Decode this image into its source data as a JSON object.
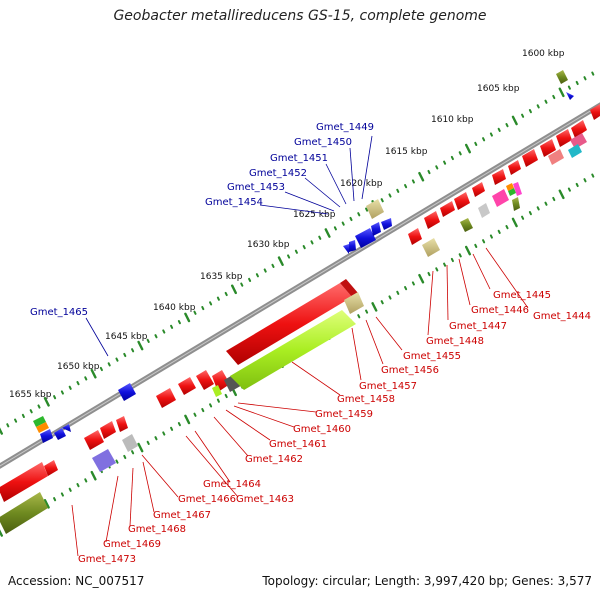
{
  "title": "Geobacter metallireducens GS-15, complete genome",
  "footer": {
    "accession": "Accession: NC_007517",
    "topology": "Topology: circular; Length: 3,997,420 bp; Genes: 3,577"
  },
  "colors": {
    "backbone": "#8a8a8a",
    "forward_gene": "#ee1111",
    "reverse_gene": "#1111dd",
    "tick": "#2a8a2a",
    "label_forward": "#000099",
    "label_reverse": "#cc0000"
  },
  "kbp_labels": [
    "1600 kbp",
    "1605 kbp",
    "1610 kbp",
    "1615 kbp",
    "1620 kbp",
    "1625 kbp",
    "1630 kbp",
    "1635 kbp",
    "1640 kbp",
    "1645 kbp",
    "1650 kbp",
    "1655 kbp"
  ],
  "outer_labels": [
    "Gmet_1449",
    "Gmet_1450",
    "Gmet_1451",
    "Gmet_1452",
    "Gmet_1453",
    "Gmet_1454",
    "Gmet_1465"
  ],
  "inner_labels": [
    "Gmet_1445",
    "Gmet_1446",
    "Gmet_1444",
    "Gmet_1447",
    "Gmet_1448",
    "Gmet_1455",
    "Gmet_1456",
    "Gmet_1457",
    "Gmet_1458",
    "Gmet_1459",
    "Gmet_1460",
    "Gmet_1461",
    "Gmet_1462",
    "Gmet_1464",
    "Gmet_1463",
    "Gmet_1466",
    "Gmet_1467",
    "Gmet_1468",
    "Gmet_1469",
    "Gmet_1473"
  ]
}
